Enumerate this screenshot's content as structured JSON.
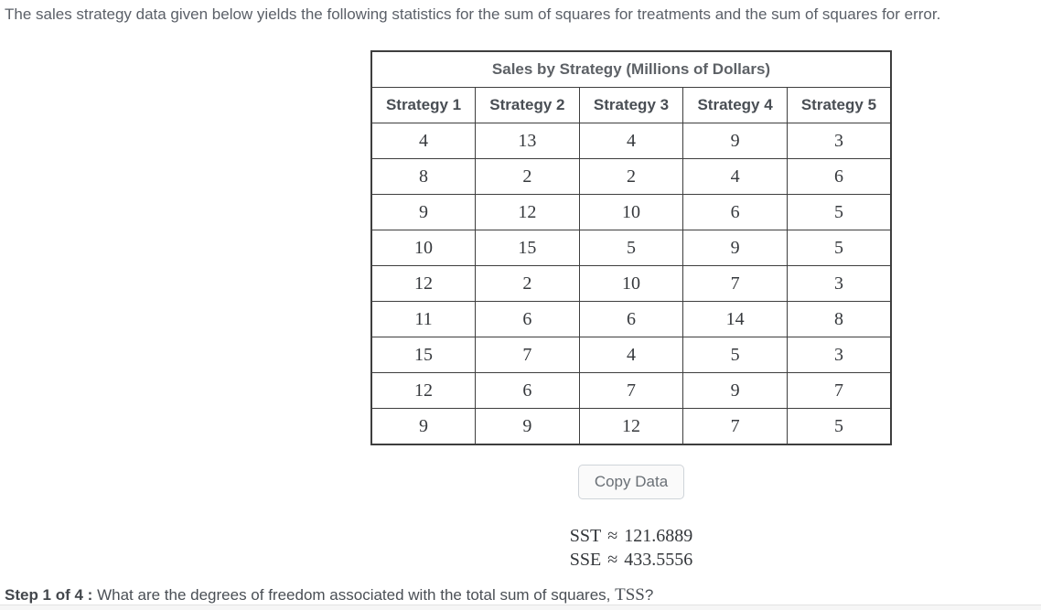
{
  "intro": "The sales strategy data given below yields the following statistics for the sum of squares for treatments and the sum of squares for error.",
  "table": {
    "title": "Sales by Strategy (Millions of Dollars)",
    "headers": [
      "Strategy 1",
      "Strategy 2",
      "Strategy 3",
      "Strategy 4",
      "Strategy 5"
    ],
    "rows": [
      [
        4,
        13,
        4,
        9,
        3
      ],
      [
        8,
        2,
        2,
        4,
        6
      ],
      [
        9,
        12,
        10,
        6,
        5
      ],
      [
        10,
        15,
        5,
        9,
        5
      ],
      [
        12,
        2,
        10,
        7,
        3
      ],
      [
        11,
        6,
        6,
        14,
        8
      ],
      [
        15,
        7,
        4,
        5,
        3
      ],
      [
        12,
        6,
        7,
        9,
        7
      ],
      [
        9,
        9,
        12,
        7,
        5
      ]
    ]
  },
  "copy_button_label": "Copy Data",
  "stats": {
    "sst": {
      "label": "SST",
      "approx": "≈",
      "value": "121.6889"
    },
    "sse": {
      "label": "SSE",
      "approx": "≈",
      "value": "433.5556"
    }
  },
  "step": {
    "label": "Step 1 of 4 :",
    "question_prefix": "What are the degrees of freedom associated with the total sum of squares, ",
    "term": "TSS",
    "question_suffix": "?"
  },
  "colors": {
    "table_border": "#3e3e3e",
    "body_text": "#5b6068",
    "button_border": "#cfd4d9",
    "button_background": "#fafafa"
  }
}
